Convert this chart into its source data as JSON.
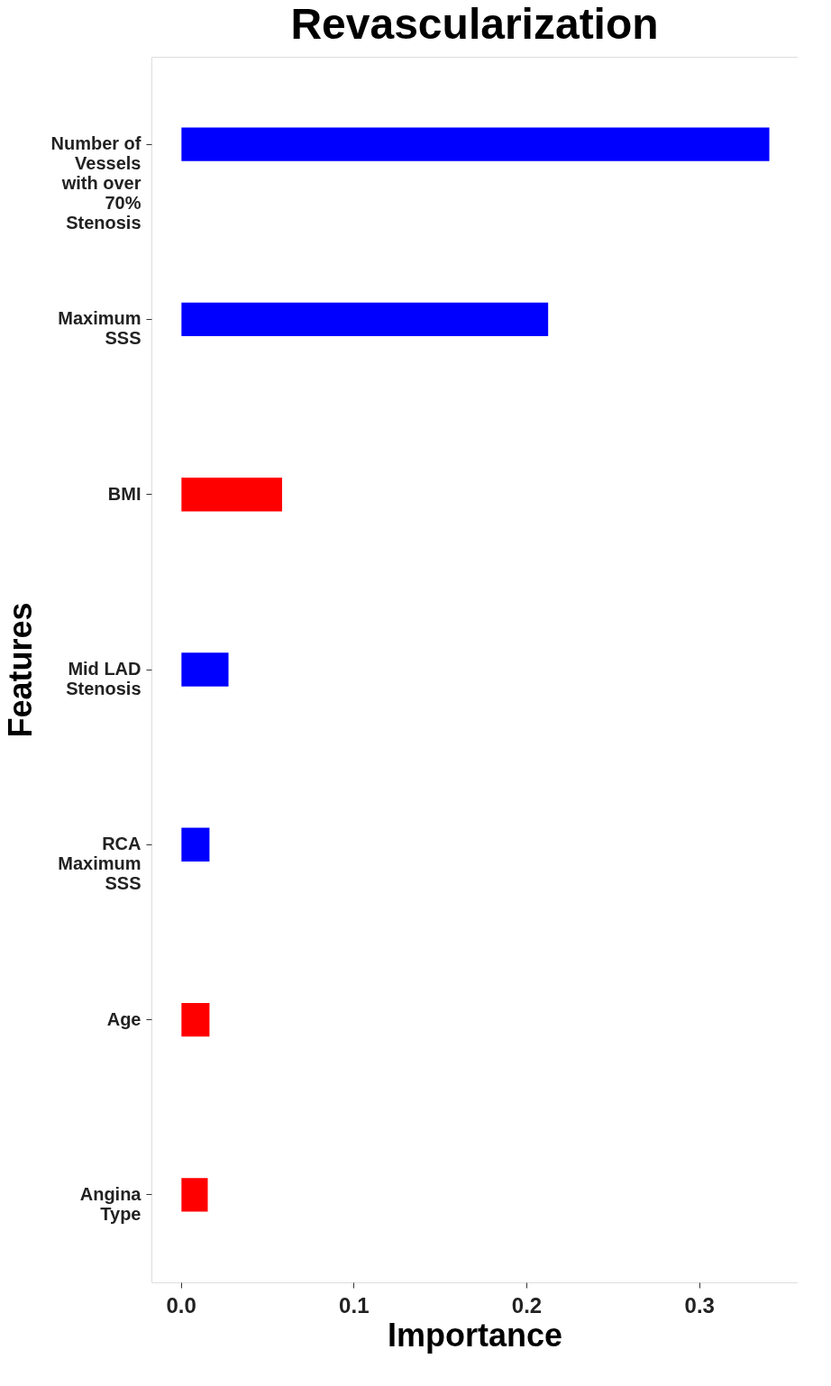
{
  "chart_data": {
    "type": "bar",
    "orientation": "horizontal",
    "title": "Revascularization",
    "xlabel": "Importance",
    "ylabel": "Features",
    "categories": [
      "Number of Vessels with over 70% Stenosis",
      "Maximum SSS",
      "BMI",
      "Mid LAD Stenosis",
      "RCA Maximum SSS",
      "Age",
      "Angina Type"
    ],
    "values": [
      0.341,
      0.213,
      0.059,
      0.028,
      0.017,
      0.017,
      0.016
    ],
    "colors": [
      "#0000ff",
      "#0000ff",
      "#ff0000",
      "#0000ff",
      "#0000ff",
      "#ff0000",
      "#ff0000"
    ],
    "xlim": [
      -0.017,
      0.357
    ],
    "xticks": [
      {
        "value": 0,
        "label": "0.0"
      },
      0.1,
      0.2,
      0.3
    ],
    "grid": false
  }
}
